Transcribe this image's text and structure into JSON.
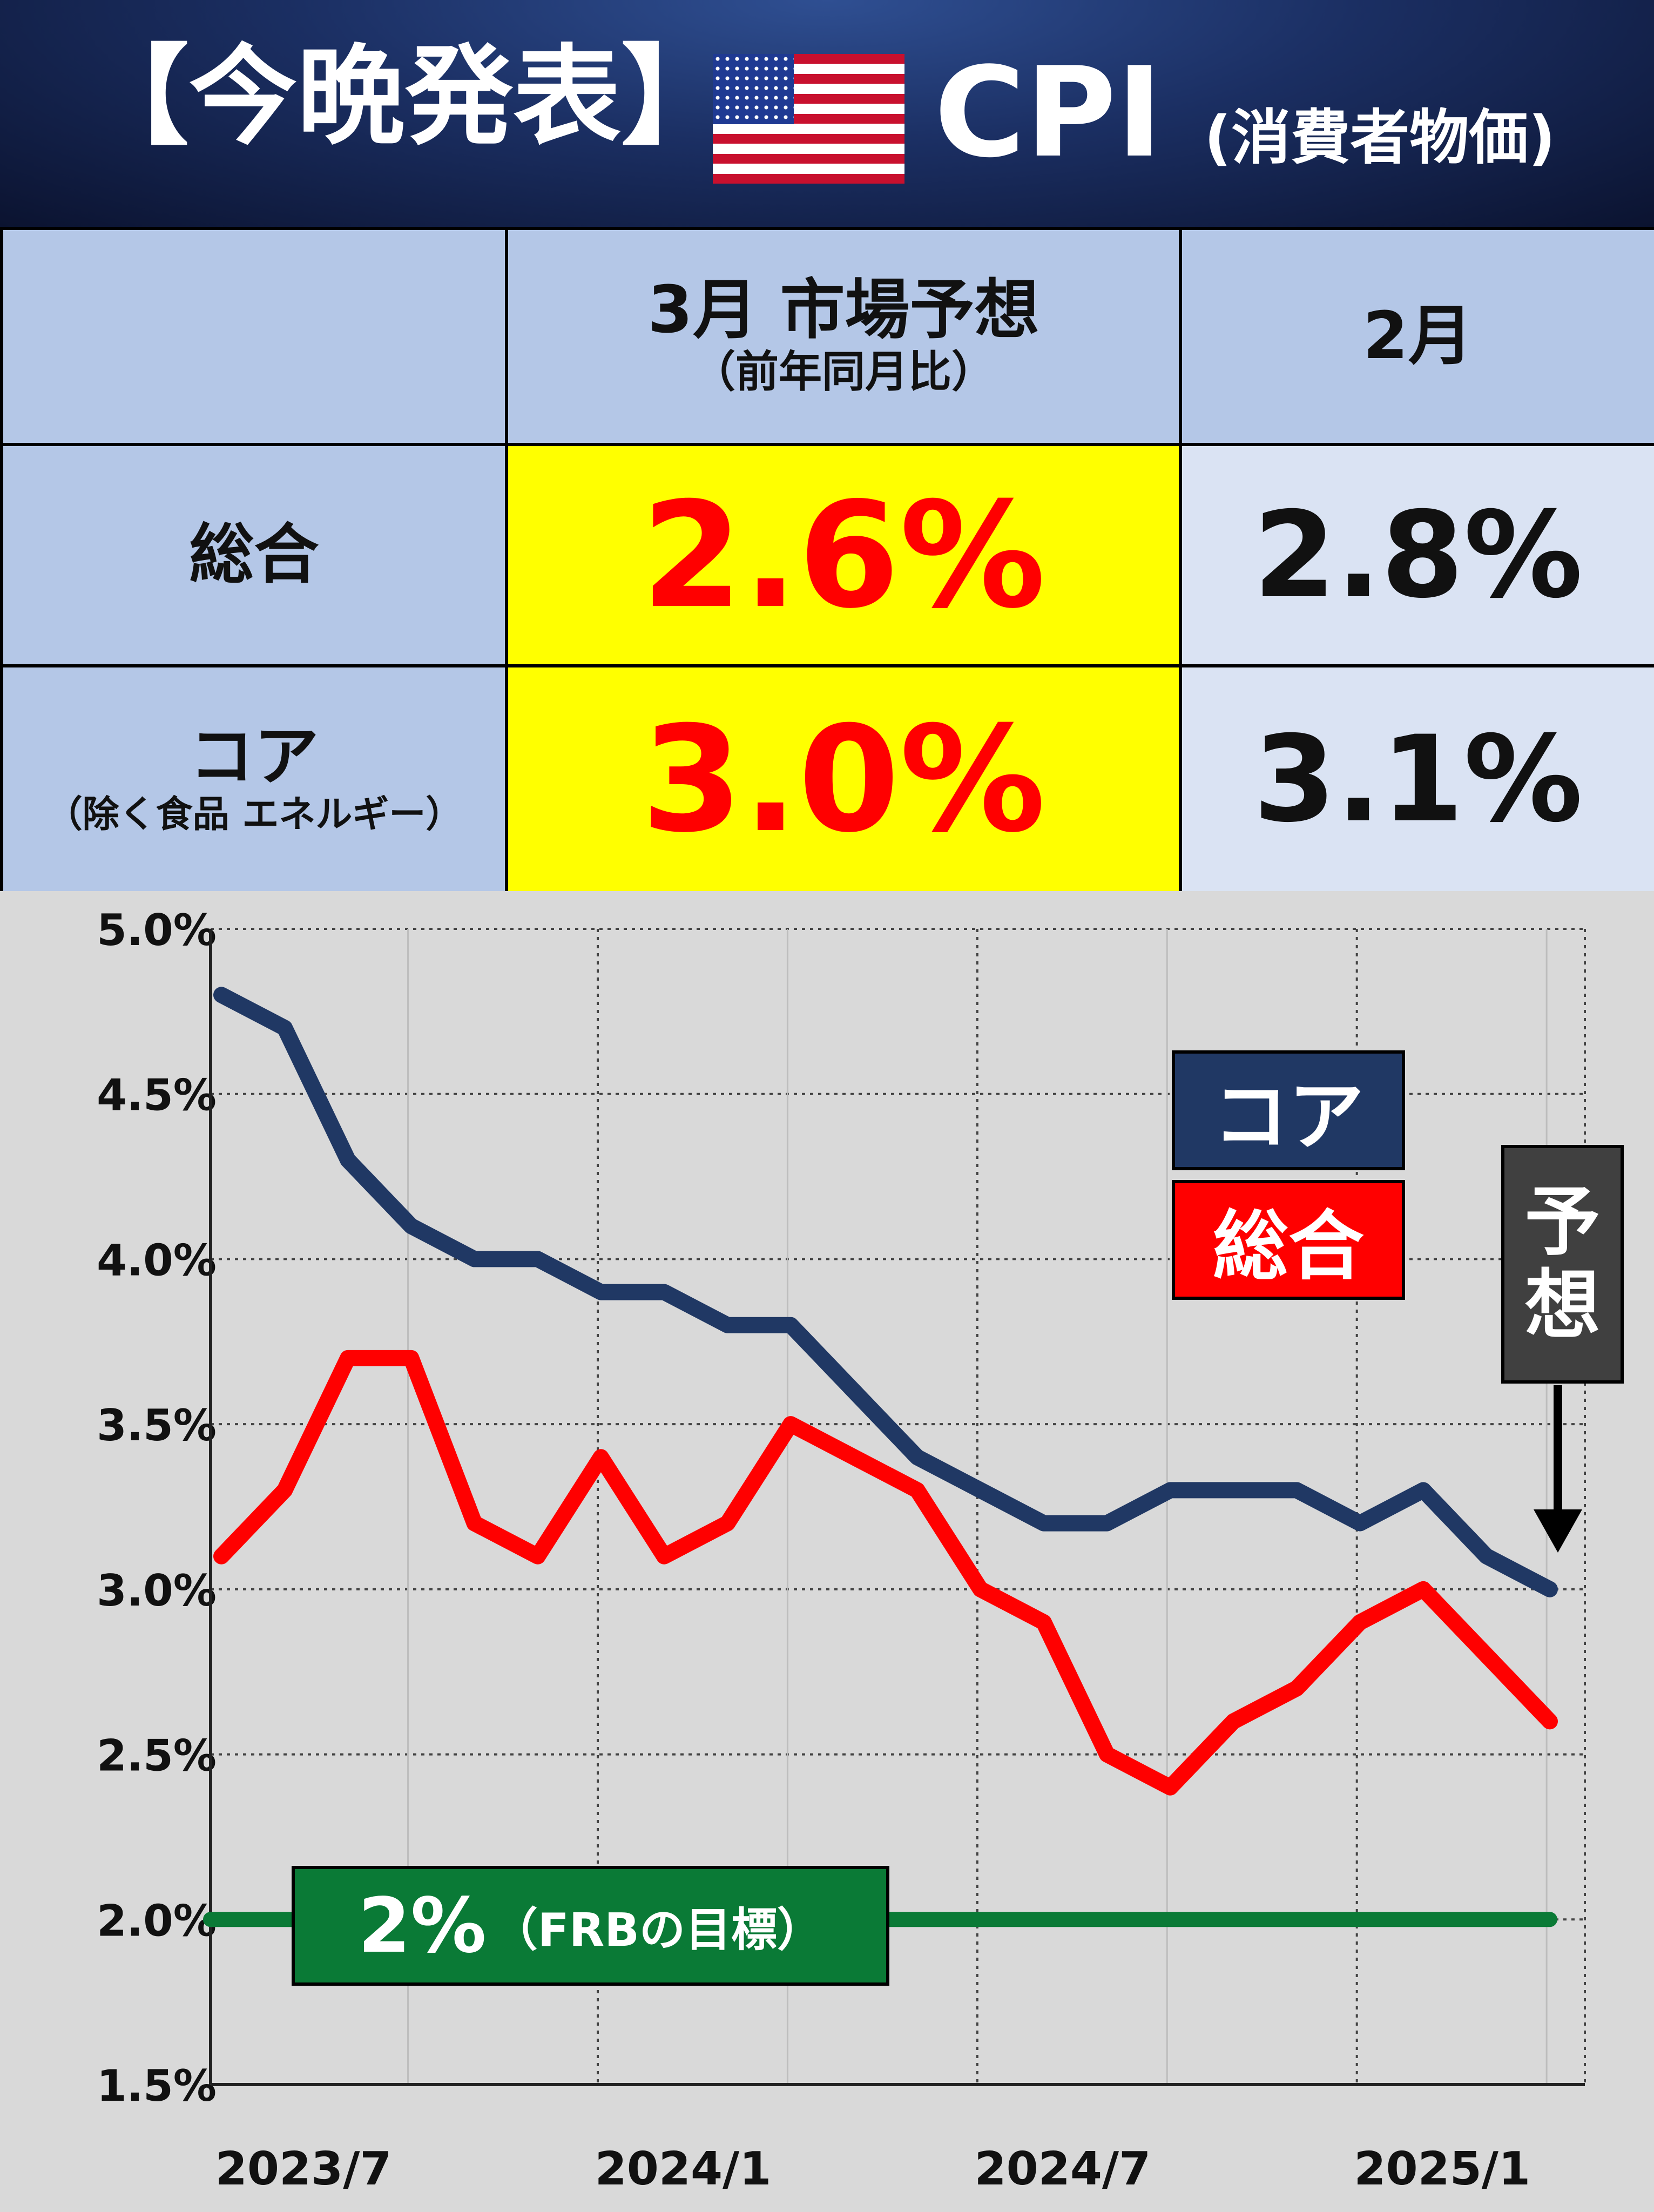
{
  "header": {
    "title": "【今晩発表】",
    "indicator": "CPI",
    "indicator_sub": "(消費者物価)",
    "flag_icon": "us-flag-icon"
  },
  "table": {
    "header": {
      "col_forecast": "3月 市場予想",
      "col_forecast_sub": "（前年同月比）",
      "col_prev": "2月"
    },
    "rows": [
      {
        "label": "総合",
        "label_sub": "",
        "forecast": "2.6%",
        "prev": "2.8%"
      },
      {
        "label": "コア",
        "label_sub": "（除く食品 エネルギー）",
        "forecast": "3.0%",
        "prev": "3.1%"
      }
    ],
    "colors": {
      "forecast_bg": "#ffff00",
      "forecast_text": "#ff0000",
      "label_bg": "#b4c7e7",
      "prev_bg": "#dae3f3"
    }
  },
  "chart_data": {
    "type": "line",
    "x_tick_labels": [
      "2023/7",
      "2024/1",
      "2024/7",
      "2025/1"
    ],
    "x": [
      "2023/6",
      "2023/7",
      "2023/8",
      "2023/9",
      "2023/10",
      "2023/11",
      "2023/12",
      "2024/1",
      "2024/2",
      "2024/3",
      "2024/4",
      "2024/5",
      "2024/6",
      "2024/7",
      "2024/8",
      "2024/9",
      "2024/10",
      "2024/11",
      "2024/12",
      "2025/1",
      "2025/2",
      "2025/3"
    ],
    "ylim": [
      1.5,
      5.0
    ],
    "y_ticks": [
      "5.0%",
      "4.5%",
      "4.0%",
      "3.5%",
      "3.0%",
      "2.5%",
      "2.0%",
      "1.5%"
    ],
    "y_tick_values": [
      5.0,
      4.5,
      4.0,
      3.5,
      3.0,
      2.5,
      2.0,
      1.5
    ],
    "grid": true,
    "series": [
      {
        "name": "コア",
        "color": "#203864",
        "values": [
          4.8,
          4.7,
          4.3,
          4.1,
          4.0,
          4.0,
          3.9,
          3.9,
          3.8,
          3.8,
          3.6,
          3.4,
          3.3,
          3.2,
          3.2,
          3.3,
          3.3,
          3.3,
          3.2,
          3.3,
          3.1,
          3.0
        ]
      },
      {
        "name": "総合",
        "color": "#ff0000",
        "values": [
          3.1,
          3.3,
          3.7,
          3.7,
          3.2,
          3.1,
          3.4,
          3.1,
          3.2,
          3.5,
          3.4,
          3.3,
          3.0,
          2.9,
          2.5,
          2.4,
          2.6,
          2.7,
          2.9,
          3.0,
          2.8,
          2.6
        ]
      }
    ],
    "reference_line": {
      "value": 2.0,
      "color": "#0a7a36",
      "label": "2%",
      "label_sub": "（FRBの目標）"
    },
    "legend": [
      {
        "label": "コア",
        "color": "#203864"
      },
      {
        "label": "総合",
        "color": "#ff0000"
      }
    ],
    "annotation": {
      "label": "予想",
      "chars": [
        "予",
        "想"
      ]
    }
  }
}
